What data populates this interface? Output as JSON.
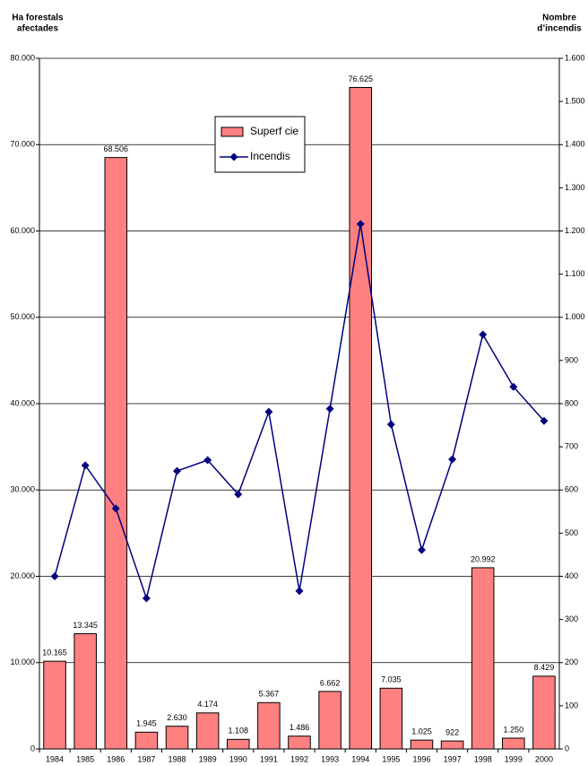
{
  "chart_data": {
    "type": "bar-line",
    "y_label": [
      "Ha forestals",
      "afectades"
    ],
    "y2_label": [
      "Nombre",
      "d’incendis"
    ],
    "categories": [
      "1984",
      "1985",
      "1986",
      "1987",
      "1988",
      "1989",
      "1990",
      "1991",
      "1992",
      "1993",
      "1994",
      "1995",
      "1996",
      "1997",
      "1998",
      "1999",
      "2000"
    ],
    "series": [
      {
        "name": "Superf cie",
        "type": "bar",
        "color": "#ff8080",
        "values": [
          10165,
          13345,
          68506,
          1945,
          2630,
          4174,
          1108,
          5367,
          1486,
          6662,
          76625,
          7035,
          1025,
          922,
          20992,
          1250,
          8429
        ],
        "value_labels": [
          "10.165",
          "13.345",
          "68.506",
          "1.945",
          "2.630",
          "4.174",
          "1.108",
          "5.367",
          "1.486",
          "6.662",
          "76.625",
          "7.035",
          "1.025",
          "922",
          "20.992",
          "1.250",
          "8.429"
        ]
      },
      {
        "name": "Incendis",
        "type": "line",
        "axis": "y2",
        "color": "#000080",
        "values": [
          400,
          657,
          557,
          349,
          644,
          669,
          590,
          781,
          366,
          788,
          1216,
          752,
          461,
          671,
          960,
          839,
          760
        ]
      }
    ],
    "ylim": [
      0,
      80000
    ],
    "yticks": [
      0,
      {
        "value": 10000,
        "label": "10.000"
      },
      {
        "value": 20000,
        "label": "20.000"
      },
      {
        "value": 30000,
        "label": "30.000"
      },
      {
        "value": 40000,
        "label": "40.000"
      },
      {
        "value": 50000,
        "label": "50.000"
      },
      {
        "value": 60000,
        "label": "60.000"
      },
      {
        "value": 70000,
        "label": "70.000"
      },
      {
        "value": 80000,
        "label": "80.000"
      }
    ],
    "y2lim": [
      0,
      1600
    ],
    "y2ticks": [
      0,
      100,
      200,
      300,
      400,
      500,
      600,
      700,
      800,
      900,
      {
        "value": 1000,
        "label": "1.000"
      },
      {
        "value": 1100,
        "label": "1.100"
      },
      {
        "value": 1200,
        "label": "1.200"
      },
      {
        "value": 1300,
        "label": "1.300"
      },
      {
        "value": 1400,
        "label": "1.400"
      },
      {
        "value": 1500,
        "label": "1.500"
      },
      {
        "value": 1600,
        "label": "1.600"
      }
    ],
    "grid": true
  }
}
